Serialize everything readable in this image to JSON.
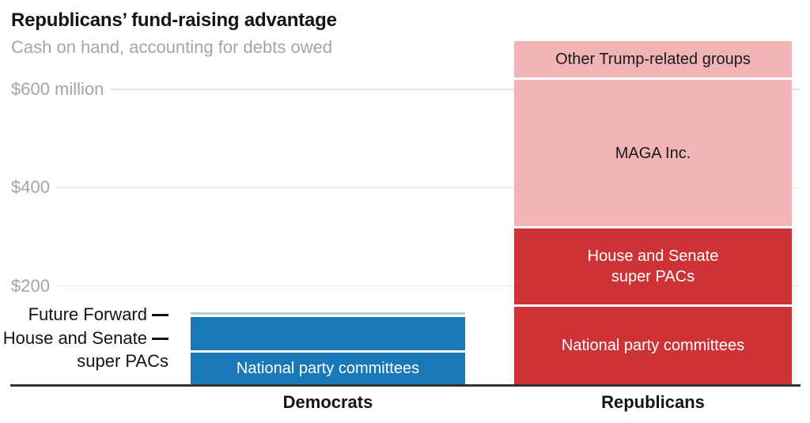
{
  "chart": {
    "title": "Republicans’ fund-raising advantage",
    "subtitle": "Cash on hand, accounting for debts owed"
  },
  "colors": {
    "democrat_blue": "#1878b8",
    "democrat_light_blue": "#abcee8",
    "republican_red": "#cc3236",
    "republican_pink": "#f0b4b7",
    "gridline": "#e2e2e2",
    "axis": "#333333",
    "muted_text": "#a5a5a5",
    "dark_text": "#141414"
  },
  "chart_data": {
    "type": "bar",
    "stacked": true,
    "title": "Republicans’ fund-raising advantage",
    "subtitle": "Cash on hand, accounting for debts owed",
    "unit": "millions of US dollars",
    "ylim": [
      0,
      700
    ],
    "grid": true,
    "y_axis": {
      "ticks": [
        {
          "label": "$600 million",
          "value": 600
        },
        {
          "label": "$400",
          "value": 400
        },
        {
          "label": "$200",
          "value": 200
        }
      ]
    },
    "categories": [
      "Democrats",
      "Republicans"
    ],
    "bars": [
      {
        "category": "Democrats",
        "total_estimate": 137,
        "segments": [
          {
            "name": "Future Forward",
            "value": 5,
            "color": "#abcee8",
            "label_inside": "",
            "label_color": "#141414"
          },
          {
            "name": "House and Senate super PACs",
            "value": 68,
            "color": "#1878b8",
            "label_inside": "",
            "label_color": "#ffffff"
          },
          {
            "name": "National party committees",
            "value": 64,
            "color": "#1878b8",
            "label_inside": "National party committees",
            "label_color": "#ffffff"
          }
        ]
      },
      {
        "category": "Republicans",
        "total_estimate": 685,
        "segments": [
          {
            "name": "Other Trump-related groups",
            "value": 75,
            "color": "#f0b4b7",
            "label_inside": "Other Trump-related groups",
            "label_color": "#1a1a1a"
          },
          {
            "name": "MAGA Inc.",
            "value": 297,
            "color": "#f0b4b7",
            "label_inside": "MAGA Inc.",
            "label_color": "#1a1a1a"
          },
          {
            "name": "House and Senate super PACs",
            "value": 155,
            "color": "#cc3236",
            "label_inside": "House and Senate\nsuper PACs",
            "label_color": "#ffffff"
          },
          {
            "name": "National party committees",
            "value": 157,
            "color": "#cc3236",
            "label_inside": "National party committees",
            "label_color": "#ffffff"
          }
        ]
      }
    ],
    "annotations": [
      {
        "target": "Future Forward",
        "lines": [
          "Future Forward"
        ]
      },
      {
        "target": "House and Senate super PACs",
        "lines": [
          "House and Senate",
          "super PACs"
        ]
      }
    ]
  }
}
